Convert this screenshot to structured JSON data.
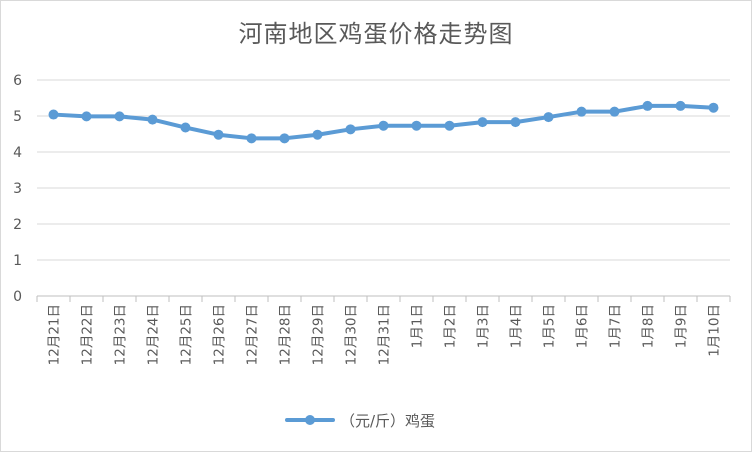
{
  "chart_data": {
    "type": "line",
    "title": "河南地区鸡蛋价格走势图",
    "categories": [
      "12月21日",
      "12月22日",
      "12月23日",
      "12月24日",
      "12月25日",
      "12月26日",
      "12月27日",
      "12月28日",
      "12月29日",
      "12月30日",
      "12月31日",
      "1月1日",
      "1月2日",
      "1月3日",
      "1月4日",
      "1月5日",
      "1月6日",
      "1月7日",
      "1月8日",
      "1月9日",
      "1月10日"
    ],
    "series": [
      {
        "name": "（元/斤）鸡蛋",
        "values": [
          5.04,
          4.99,
          4.99,
          4.9,
          4.68,
          4.48,
          4.38,
          4.38,
          4.48,
          4.63,
          4.73,
          4.73,
          4.73,
          4.83,
          4.83,
          4.97,
          5.12,
          5.12,
          5.28,
          5.28,
          5.23
        ],
        "color": "#5b9bd5"
      }
    ],
    "ylim": [
      0,
      6
    ],
    "yticks": [
      "0",
      "1",
      "2",
      "3",
      "4",
      "5",
      "6"
    ],
    "grid": true,
    "legend": "bottom"
  }
}
